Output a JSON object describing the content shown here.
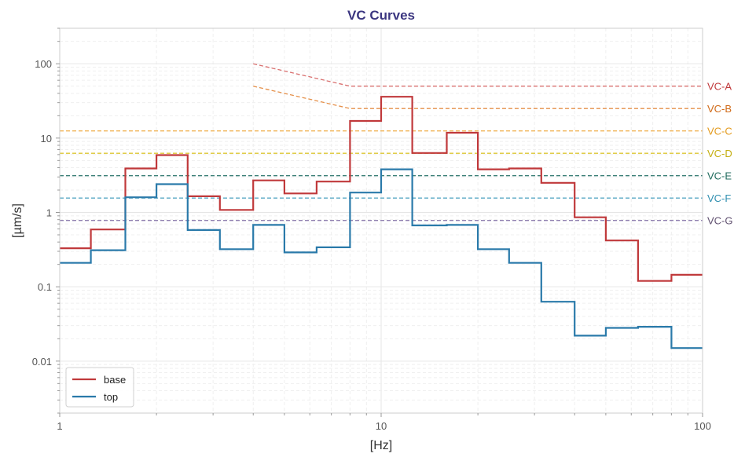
{
  "chart_data": {
    "type": "line",
    "title": "VC Curves",
    "xlabel": "[Hz]",
    "ylabel": "[µm/s]",
    "xscale": "log",
    "yscale": "log",
    "xlim": [
      1,
      100
    ],
    "ylim": [
      0.002,
      300
    ],
    "grid": true,
    "legend_position": "lower-left",
    "x_ticks": [
      {
        "value": 1,
        "label": "1"
      },
      {
        "value": 10,
        "label": "10"
      },
      {
        "value": 100,
        "label": "100"
      }
    ],
    "y_ticks": [
      {
        "value": 0.01,
        "label": "0.01"
      },
      {
        "value": 0.1,
        "label": "0.1"
      },
      {
        "value": 1,
        "label": "1"
      },
      {
        "value": 10,
        "label": "10"
      },
      {
        "value": 100,
        "label": "100"
      }
    ],
    "band_edges": [
      1,
      1.25,
      1.6,
      2,
      2.5,
      3.15,
      4,
      5,
      6.3,
      8,
      10,
      12.5,
      16,
      20,
      25,
      31.5,
      40,
      50,
      63,
      80,
      100
    ],
    "series": [
      {
        "name": "base",
        "color": "#c0393b",
        "values": [
          0.33,
          0.59,
          3.9,
          5.9,
          1.65,
          1.08,
          2.7,
          1.8,
          2.6,
          17,
          36,
          6.3,
          11.8,
          3.8,
          3.9,
          2.5,
          0.86,
          0.42,
          0.12,
          0.145
        ]
      },
      {
        "name": "top",
        "color": "#2a7aaa",
        "values": [
          0.21,
          0.31,
          1.6,
          2.4,
          0.58,
          0.32,
          0.68,
          0.29,
          0.34,
          1.85,
          3.8,
          0.67,
          0.68,
          0.32,
          0.21,
          0.063,
          0.022,
          0.028,
          0.029,
          0.015
        ]
      }
    ],
    "vc_curves": [
      {
        "label": "VC-A",
        "color": "#d9706f",
        "label_color": "#c0393b",
        "points": [
          [
            4,
            100
          ],
          [
            8,
            50
          ],
          [
            100,
            50
          ]
        ]
      },
      {
        "label": "VC-B",
        "color": "#e5904a",
        "label_color": "#d06a18",
        "points": [
          [
            4,
            50
          ],
          [
            8,
            25
          ],
          [
            100,
            25
          ]
        ]
      },
      {
        "label": "VC-C",
        "color": "#f0b458",
        "label_color": "#e39a1c",
        "points": [
          [
            1,
            12.5
          ],
          [
            100,
            12.5
          ]
        ]
      },
      {
        "label": "VC-D",
        "color": "#dcc633",
        "label_color": "#c4ae10",
        "points": [
          [
            1,
            6.25
          ],
          [
            100,
            6.25
          ]
        ]
      },
      {
        "label": "VC-E",
        "color": "#3c8078",
        "label_color": "#1f6a5c",
        "points": [
          [
            1,
            3.12
          ],
          [
            100,
            3.12
          ]
        ]
      },
      {
        "label": "VC-F",
        "color": "#5aa8c4",
        "label_color": "#2f8fb0",
        "points": [
          [
            1,
            1.56
          ],
          [
            100,
            1.56
          ]
        ]
      },
      {
        "label": "VC-G",
        "color": "#9080b0",
        "label_color": "#605070",
        "points": [
          [
            1,
            0.78
          ],
          [
            100,
            0.78
          ]
        ]
      }
    ]
  }
}
